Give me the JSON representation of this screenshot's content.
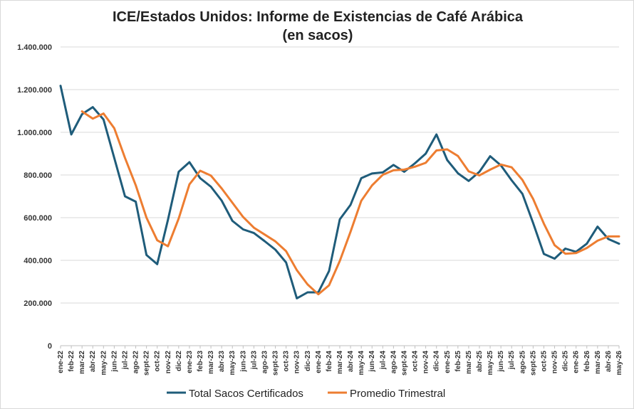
{
  "chart_data": {
    "type": "line",
    "title": "ICE/Estados Unidos: Informe de Existencias de Café Arábica",
    "subtitle": "(en sacos)",
    "xlabel": "",
    "ylabel": "",
    "ylim": [
      0,
      1400000
    ],
    "yticks": [
      0,
      200000,
      400000,
      600000,
      800000,
      1000000,
      1200000,
      1400000
    ],
    "ytick_labels": [
      "0",
      "200.000",
      "400.000",
      "600.000",
      "800.000",
      "1.000.000",
      "1.200.000",
      "1.400.000"
    ],
    "grid": true,
    "legend_position": "bottom",
    "colors": {
      "total": "#1f5c7a",
      "avg": "#ed7d31",
      "grid": "#d9d9d9"
    },
    "categories": [
      "ene-22",
      "feb-22",
      "mar-22",
      "abr-22",
      "may-22",
      "jun-22",
      "jul-22",
      "ago-22",
      "sept-22",
      "oct-22",
      "nov-22",
      "dic-22",
      "ene-23",
      "feb-23",
      "mar-23",
      "abr-23",
      "may-23",
      "jun-23",
      "jul-23",
      "ago-23",
      "sept-23",
      "oct-23",
      "nov-23",
      "dic-23",
      "ene-24",
      "feb-24",
      "mar-24",
      "abr-24",
      "may-24",
      "jun-24",
      "jul-24",
      "ago-24",
      "sept-24",
      "oct-24",
      "nov-24",
      "dic-24",
      "ene-25",
      "feb-25",
      "mar-25",
      "abr-25",
      "may-25",
      "jun-25",
      "jul-25",
      "ago-25",
      "sept-25",
      "oct-25",
      "nov-25",
      "dic-25",
      "ene-26",
      "feb-26",
      "mar-26",
      "abr-26",
      "may-26"
    ],
    "series": [
      {
        "name": "Total Sacos Certificados",
        "key": "total",
        "values": [
          1218000,
          990000,
          1085000,
          1118000,
          1060000,
          880000,
          700000,
          675000,
          425000,
          382000,
          590000,
          815000,
          860000,
          785000,
          745000,
          680000,
          585000,
          545000,
          528000,
          490000,
          450000,
          390000,
          222000,
          250000,
          250000,
          350000,
          592000,
          660000,
          785000,
          807000,
          812000,
          847000,
          815000,
          855000,
          900000,
          990000,
          870000,
          808000,
          772000,
          815000,
          888000,
          845000,
          775000,
          712000,
          575000,
          430000,
          408000,
          455000,
          440000,
          478000,
          558000,
          500000,
          478000
        ]
      },
      {
        "name": "Promedio Trimestral",
        "key": "avg",
        "values": [
          null,
          null,
          1098000,
          1064000,
          1088000,
          1019000,
          880000,
          752000,
          600000,
          494000,
          466000,
          596000,
          756000,
          820000,
          797000,
          737000,
          670000,
          603000,
          553000,
          521000,
          489000,
          443000,
          354000,
          287000,
          241000,
          283000,
          397000,
          534000,
          679000,
          751000,
          801000,
          822000,
          825000,
          839000,
          857000,
          915000,
          920000,
          889000,
          817000,
          798000,
          825000,
          849000,
          836000,
          777000,
          688000,
          572000,
          471000,
          431000,
          434000,
          458000,
          492000,
          512000,
          512000
        ]
      }
    ]
  }
}
